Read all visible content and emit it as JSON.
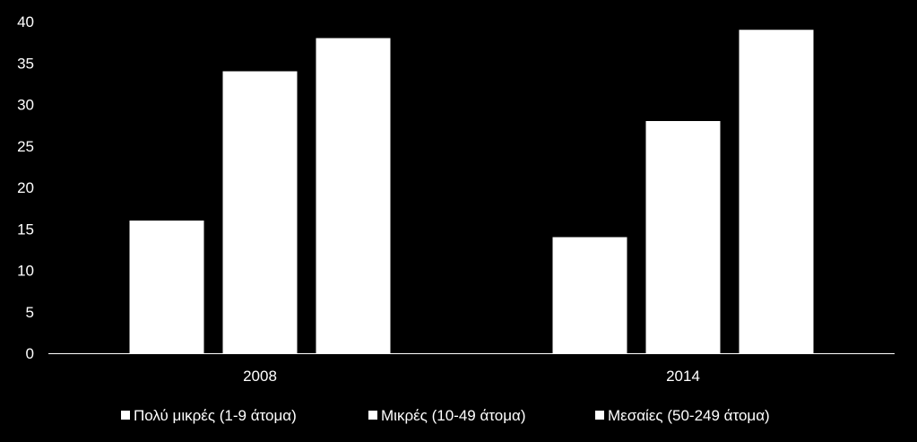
{
  "chart_data": {
    "type": "bar",
    "categories": [
      "2008",
      "2014"
    ],
    "series": [
      {
        "name": "Πολύ μικρές (1-9 άτομα)",
        "values": [
          16,
          14
        ]
      },
      {
        "name": "Μικρές (10-49 άτομα)",
        "values": [
          34,
          28
        ]
      },
      {
        "name": "Μεσαίες  (50-249 άτομα)",
        "values": [
          38,
          39
        ]
      }
    ],
    "title": "",
    "xlabel": "",
    "ylabel": "",
    "ylim": [
      0,
      40
    ],
    "yticks": [
      0,
      5,
      10,
      15,
      20,
      25,
      30,
      35,
      40
    ],
    "grid": false,
    "legend": "bottom",
    "colors": {
      "background": "#000000",
      "bars": "#ffffff",
      "axis": "#ffffff",
      "text": "#ffffff"
    }
  }
}
